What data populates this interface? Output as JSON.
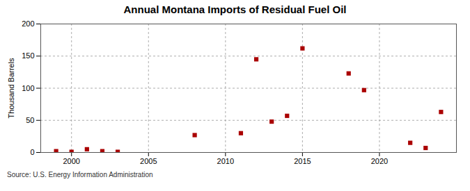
{
  "chart_data": {
    "type": "scatter",
    "title": "Annual Montana Imports of Residual Fuel Oil",
    "ylabel": "Thousand Barrels",
    "source": "Source: U.S. Energy Information Administration",
    "x": [
      1999,
      2000,
      2001,
      2002,
      2003,
      2008,
      2011,
      2012,
      2013,
      2014,
      2015,
      2018,
      2019,
      2022,
      2023,
      2024
    ],
    "values": [
      2,
      1,
      5,
      2,
      1,
      27,
      30,
      145,
      48,
      57,
      162,
      123,
      97,
      15,
      7,
      63
    ],
    "color": "#aa0000",
    "marker": "square",
    "xlim": [
      1998,
      2025
    ],
    "ylim": [
      0,
      200
    ],
    "xticks": [
      2000,
      2005,
      2010,
      2015,
      2020
    ],
    "yticks": [
      0,
      50,
      100,
      150,
      200
    ],
    "grid": true
  }
}
